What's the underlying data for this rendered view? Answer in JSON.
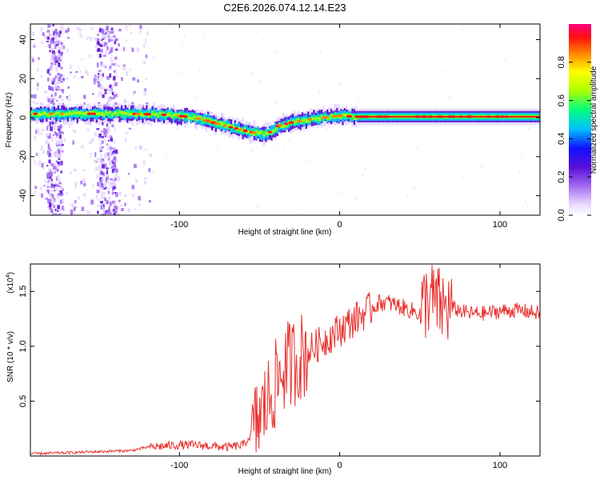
{
  "figure_title": "C2E6.2026.074.12.14.E23",
  "chart_data": [
    {
      "type": "heatmap",
      "title": "C2E6.2026.074.12.14.E23",
      "xlabel": "Height of straight line (km)",
      "ylabel": "Frequency (Hz)",
      "xlim": [
        -193,
        125
      ],
      "ylim": [
        -50,
        48
      ],
      "x_ticks": [
        -100,
        0,
        100
      ],
      "x_tick_labels": [
        "-100",
        "0",
        "100"
      ],
      "y_ticks": [
        -40,
        -20,
        0,
        20,
        40
      ],
      "y_tick_labels": [
        "-40",
        "-20",
        "0",
        "20",
        "40"
      ],
      "ridge": {
        "description": "Dominant frequency ridge (Hz) vs height",
        "x": [
          -193,
          -170,
          -150,
          -130,
          -110,
          -95,
          -85,
          -75,
          -65,
          -55,
          -48,
          -42,
          -38,
          -30,
          -20,
          -10,
          0,
          10,
          40,
          70,
          100,
          125
        ],
        "y": [
          2,
          2,
          2,
          2,
          1.5,
          0.5,
          -1,
          -3.5,
          -5.5,
          -7.5,
          -8.5,
          -7,
          -4,
          -2.5,
          -1,
          0,
          1,
          0.5,
          0.5,
          0.5,
          0.5,
          0.5
        ]
      },
      "colorbar": {
        "label": "Normalized spectral amplitude",
        "range": [
          0,
          1
        ],
        "ticks": [
          0.0,
          0.2,
          0.4,
          0.6,
          0.8
        ],
        "tick_labels": [
          "0.0",
          "0.2",
          "0.4",
          "0.6",
          "0.8"
        ],
        "colormap": [
          "#ffffff",
          "#e6d7ff",
          "#a36cf0",
          "#5a0fd8",
          "#1010ff",
          "#00c0ff",
          "#00ff80",
          "#aaff00",
          "#ffff00",
          "#ff8000",
          "#ff1010",
          "#ff0080"
        ]
      }
    },
    {
      "type": "line",
      "xlabel": "Height of straight line (km)",
      "ylabel": "SNR (10 * v/v)",
      "y_multiplier_label": "(x10",
      "y_multiplier_exp": "4",
      "xlim": [
        -193,
        125
      ],
      "ylim": [
        0,
        1.75
      ],
      "x_ticks": [
        -100,
        0,
        100
      ],
      "x_tick_labels": [
        "-100",
        "0",
        "100"
      ],
      "y_ticks": [
        0.5,
        1.0,
        1.5
      ],
      "y_tick_labels": [
        "0.5",
        "1.0",
        "1.5"
      ],
      "color": "#e8302c",
      "series": [
        {
          "name": "SNR",
          "x": [
            -193,
            -170,
            -150,
            -130,
            -120,
            -100,
            -90,
            -80,
            -70,
            -60,
            -55,
            -50,
            -45,
            -40,
            -35,
            -30,
            -25,
            -20,
            -15,
            -10,
            -5,
            0,
            10,
            20,
            25,
            30,
            40,
            50,
            55,
            60,
            65,
            70,
            80,
            90,
            100,
            110,
            125
          ],
          "y": [
            0.02,
            0.03,
            0.04,
            0.05,
            0.08,
            0.1,
            0.1,
            0.09,
            0.08,
            0.1,
            0.2,
            0.35,
            0.5,
            0.65,
            0.8,
            0.85,
            0.9,
            0.95,
            1.0,
            1.05,
            1.1,
            1.15,
            1.25,
            1.35,
            1.4,
            1.4,
            1.35,
            1.3,
            1.45,
            1.4,
            1.35,
            1.35,
            1.3,
            1.3,
            1.32,
            1.33,
            1.3
          ]
        }
      ]
    }
  ]
}
